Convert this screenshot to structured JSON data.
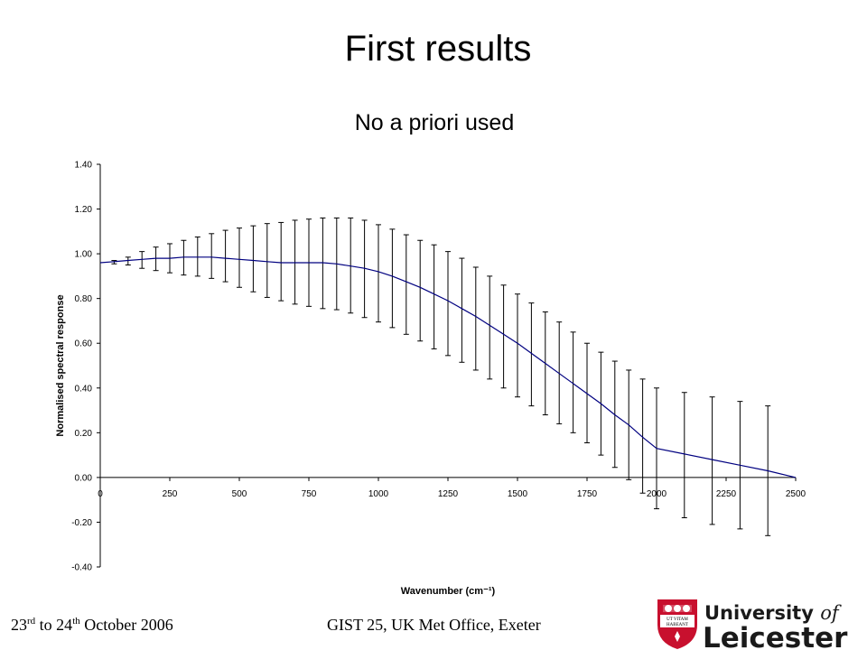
{
  "slide": {
    "title": "First results",
    "subtitle": "No a priori used"
  },
  "footer": {
    "date_part1": "23",
    "date_sup1": "rd",
    "date_part2": " to 24",
    "date_sup2": "th",
    "date_part3": " October 2006",
    "event": "GIST 25, UK Met Office, Exeter"
  },
  "logo": {
    "line1": "University",
    "line1_italic": "of",
    "line2": "Leicester",
    "motto_line1": "UT VITAM",
    "motto_line2": "HABEANT",
    "brand_red": "#c8102e"
  },
  "chart_data": {
    "type": "line",
    "title": "",
    "xlabel": "Wavenumber (cm⁻¹)",
    "ylabel": "Normalised spectral response",
    "xlim": [
      0,
      2500
    ],
    "ylim": [
      -0.4,
      1.4
    ],
    "x_ticks": [
      0,
      250,
      500,
      750,
      1000,
      1250,
      1500,
      1750,
      2000,
      2250,
      2500
    ],
    "x_tick_labels": [
      "0",
      "250",
      "500",
      "750",
      "1000",
      "1250",
      "1500",
      "1750",
      "2000",
      "2250",
      "2500"
    ],
    "y_ticks": [
      -0.4,
      -0.2,
      0,
      0.2,
      0.4,
      0.6,
      0.8,
      1.0,
      1.2,
      1.4
    ],
    "y_tick_labels": [
      "-0.40",
      "-0.20",
      "0.00",
      "0.20",
      "0.40",
      "0.60",
      "0.80",
      "1.00",
      "1.20",
      "1.40"
    ],
    "grid": false,
    "legend": "none",
    "line_color": "#000080",
    "series": [
      {
        "x": [
          0,
          50,
          100,
          150,
          200,
          250,
          300,
          350,
          400,
          450,
          500,
          550,
          600,
          650,
          700,
          750,
          800,
          850,
          900,
          950,
          1000,
          1050,
          1100,
          1150,
          1200,
          1250,
          1300,
          1350,
          1400,
          1450,
          1500,
          1550,
          1600,
          1650,
          1700,
          1750,
          1800,
          1850,
          1900,
          1950,
          2000,
          2100,
          2200,
          2300,
          2400,
          2500
        ],
        "values": [
          0.96,
          0.965,
          0.97,
          0.975,
          0.98,
          0.98,
          0.985,
          0.985,
          0.985,
          0.98,
          0.975,
          0.97,
          0.965,
          0.96,
          0.96,
          0.96,
          0.96,
          0.955,
          0.945,
          0.935,
          0.92,
          0.9,
          0.875,
          0.85,
          0.82,
          0.79,
          0.755,
          0.72,
          0.68,
          0.64,
          0.6,
          0.555,
          0.51,
          0.465,
          0.42,
          0.375,
          0.33,
          0.28,
          0.235,
          0.18,
          0.13,
          0.105,
          0.08,
          0.055,
          0.03,
          0.0
        ],
        "upper": [
          0.96,
          0.97,
          0.985,
          1.01,
          1.03,
          1.045,
          1.06,
          1.075,
          1.09,
          1.105,
          1.115,
          1.125,
          1.135,
          1.14,
          1.15,
          1.155,
          1.16,
          1.16,
          1.16,
          1.15,
          1.13,
          1.11,
          1.085,
          1.06,
          1.04,
          1.01,
          0.98,
          0.94,
          0.9,
          0.86,
          0.82,
          0.78,
          0.74,
          0.695,
          0.65,
          0.6,
          0.56,
          0.52,
          0.48,
          0.44,
          0.4,
          0.38,
          0.36,
          0.34,
          0.32,
          0.0
        ],
        "lower": [
          0.96,
          0.955,
          0.95,
          0.935,
          0.925,
          0.915,
          0.905,
          0.9,
          0.89,
          0.875,
          0.85,
          0.83,
          0.805,
          0.79,
          0.775,
          0.765,
          0.755,
          0.75,
          0.735,
          0.715,
          0.695,
          0.67,
          0.64,
          0.61,
          0.575,
          0.545,
          0.515,
          0.48,
          0.44,
          0.4,
          0.36,
          0.32,
          0.28,
          0.24,
          0.2,
          0.155,
          0.1,
          0.045,
          -0.01,
          -0.07,
          -0.14,
          -0.18,
          -0.21,
          -0.23,
          -0.26,
          0.0
        ]
      }
    ]
  }
}
